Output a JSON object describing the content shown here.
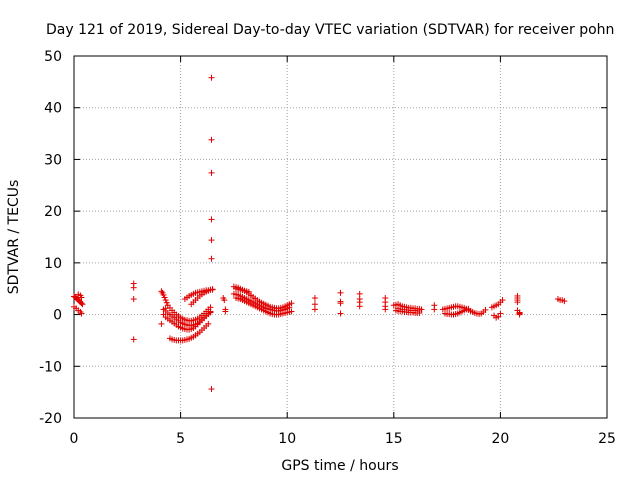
{
  "chart_data": {
    "type": "scatter",
    "title": "Day 121 of 2019, Sidereal Day-to-day VTEC variation (SDTVAR) for receiver pohn",
    "xlabel": "GPS time / hours",
    "ylabel": "SDTVAR / TECUs",
    "xlim": [
      0,
      25
    ],
    "ylim": [
      -20,
      50
    ],
    "xticks": [
      "0",
      "5",
      "10",
      "15",
      "20",
      "25"
    ],
    "yticks": [
      "-20",
      "-10",
      "0",
      "10",
      "20",
      "30",
      "40",
      "50"
    ],
    "grid": true,
    "marker": "+",
    "color": "#e00000",
    "series": [
      {
        "x": [
          0.0,
          0.05,
          0.1,
          0.15,
          0.2,
          0.25,
          0.3,
          0.35,
          0.4,
          0.0,
          0.1,
          0.2,
          0.3,
          0.35,
          0.2,
          0.3,
          0.35,
          2.8,
          2.8,
          2.8,
          2.8,
          4.1,
          4.15,
          4.2,
          4.25,
          4.3,
          4.35,
          4.4,
          4.5,
          4.6,
          4.7,
          4.8,
          4.9,
          5.0,
          5.1,
          5.2,
          5.3,
          5.4,
          5.5,
          5.6,
          5.7,
          5.8,
          5.9,
          6.0,
          6.1,
          6.2,
          6.3,
          6.4,
          4.2,
          4.3,
          4.4,
          4.5,
          4.6,
          4.7,
          4.8,
          4.9,
          5.0,
          5.1,
          5.2,
          5.3,
          5.4,
          5.5,
          5.6,
          5.7,
          5.8,
          5.9,
          6.0,
          6.1,
          6.2,
          6.3,
          6.4,
          4.3,
          4.4,
          4.5,
          4.6,
          4.7,
          4.8,
          4.9,
          5.0,
          5.1,
          5.2,
          5.3,
          5.4,
          5.5,
          5.6,
          5.7,
          5.8,
          5.9,
          6.0,
          6.1,
          6.2,
          6.3,
          6.4,
          4.5,
          4.6,
          4.7,
          4.8,
          4.9,
          5.0,
          5.1,
          5.2,
          5.3,
          5.4,
          5.5,
          5.6,
          5.7,
          5.8,
          5.9,
          6.0,
          6.1,
          6.2,
          6.3,
          4.1,
          4.2,
          4.3,
          5.5,
          5.6,
          5.7,
          5.8,
          5.9,
          6.0,
          6.1,
          6.2,
          6.3,
          6.4,
          6.5,
          5.2,
          5.3,
          5.4,
          5.5,
          5.6,
          5.7,
          5.8,
          5.9,
          6.0,
          6.1,
          6.2,
          6.3,
          6.4,
          6.5,
          6.45,
          6.45,
          6.45,
          6.45,
          6.45,
          6.45,
          6.45,
          7.0,
          7.05,
          7.1,
          7.1,
          7.5,
          7.6,
          7.7,
          7.8,
          7.9,
          8.0,
          8.1,
          8.2,
          8.3,
          8.4,
          8.5,
          8.6,
          8.7,
          8.8,
          8.9,
          9.0,
          9.1,
          9.2,
          9.3,
          9.4,
          9.5,
          9.6,
          9.7,
          9.8,
          9.9,
          10.0,
          10.1,
          10.2,
          7.5,
          7.6,
          7.7,
          7.8,
          7.9,
          8.0,
          8.1,
          8.2,
          8.3,
          8.4,
          8.5,
          8.6,
          8.7,
          8.8,
          8.9,
          9.0,
          9.1,
          9.2,
          9.3,
          9.4,
          9.5,
          9.6,
          9.7,
          9.8,
          9.9,
          10.0,
          10.1,
          7.6,
          7.7,
          7.8,
          7.9,
          8.0,
          8.1,
          8.2,
          8.3,
          8.4,
          8.5,
          8.6,
          8.7,
          8.8,
          8.9,
          9.0,
          9.1,
          9.2,
          9.3,
          9.4,
          9.5,
          9.6,
          9.7,
          9.8,
          9.9,
          10.0,
          10.1,
          10.2,
          7.6,
          7.7,
          7.8,
          7.9,
          8.0,
          8.1,
          8.2,
          11.3,
          11.3,
          11.3,
          12.5,
          12.5,
          12.5,
          12.5,
          13.4,
          13.4,
          13.4,
          13.4,
          14.6,
          14.6,
          14.6,
          14.6,
          15.0,
          15.1,
          15.2,
          15.3,
          15.4,
          15.5,
          15.6,
          15.7,
          15.8,
          15.9,
          16.0,
          16.1,
          16.2,
          16.3,
          15.1,
          15.2,
          15.3,
          15.4,
          15.5,
          15.6,
          15.7,
          15.8,
          15.9,
          16.0,
          16.1,
          16.2,
          15.2,
          15.4,
          15.6,
          15.8,
          16.0,
          16.2,
          16.9,
          16.9,
          17.3,
          17.4,
          17.5,
          17.6,
          17.7,
          17.8,
          17.9,
          18.0,
          18.1,
          18.2,
          18.3,
          18.4,
          18.5,
          18.6,
          18.7,
          18.8,
          18.9,
          19.0,
          19.1,
          19.2,
          19.3,
          17.4,
          17.5,
          17.6,
          17.7,
          17.8,
          17.9,
          18.0,
          18.1,
          18.2,
          18.3,
          18.4,
          18.5,
          19.6,
          19.7,
          19.8,
          19.9,
          20.0,
          20.1,
          19.7,
          19.8,
          19.9,
          20.0,
          20.8,
          20.8,
          20.8,
          20.8,
          20.8,
          20.9,
          20.9,
          20.9,
          22.7,
          22.8,
          22.9,
          23.0
        ],
        "y": [
          3.5,
          3.4,
          3.2,
          3.0,
          2.8,
          2.6,
          2.4,
          2.2,
          2.0,
          1.5,
          1.2,
          0.8,
          0.5,
          0.2,
          3.9,
          3.7,
          3.3,
          6.0,
          5.2,
          3.0,
          -4.8,
          4.5,
          4.2,
          3.8,
          3.3,
          2.8,
          2.3,
          1.8,
          1.3,
          0.8,
          0.4,
          0.0,
          -0.3,
          -0.6,
          -0.8,
          -1.0,
          -1.1,
          -1.2,
          -1.2,
          -1.1,
          -1.0,
          -0.8,
          -0.5,
          -0.2,
          0.2,
          0.6,
          1.0,
          1.4,
          1.0,
          0.7,
          0.3,
          0.0,
          -0.3,
          -0.6,
          -0.9,
          -1.2,
          -1.5,
          -1.7,
          -1.9,
          -2.0,
          -2.1,
          -2.1,
          -2.0,
          -1.9,
          -1.7,
          -1.4,
          -1.0,
          -0.6,
          -0.2,
          0.2,
          0.6,
          -0.5,
          -0.8,
          -1.1,
          -1.4,
          -1.7,
          -2.0,
          -2.3,
          -2.5,
          -2.7,
          -2.8,
          -2.9,
          -2.9,
          -2.8,
          -2.6,
          -2.3,
          -1.9,
          -1.5,
          -1.1,
          -0.7,
          -0.3,
          0.1,
          0.4,
          -4.6,
          -4.8,
          -4.9,
          -5.0,
          -5.0,
          -5.0,
          -5.0,
          -4.9,
          -4.8,
          -4.7,
          -4.5,
          -4.3,
          -4.0,
          -3.7,
          -3.4,
          -3.0,
          -2.6,
          -2.2,
          -1.8,
          -1.8,
          0.0,
          1.2,
          2.0,
          2.4,
          2.8,
          3.2,
          3.6,
          3.9,
          4.2,
          4.4,
          4.6,
          4.8,
          4.9,
          3.0,
          3.3,
          3.6,
          3.8,
          4.0,
          4.2,
          4.3,
          4.4,
          4.5,
          4.6,
          4.7,
          4.7,
          4.8,
          4.8,
          45.8,
          33.8,
          27.4,
          18.4,
          14.4,
          10.8,
          -14.4,
          3.2,
          2.8,
          1.0,
          0.6,
          5.4,
          5.3,
          5.2,
          5.0,
          4.8,
          4.6,
          4.3,
          4.0,
          3.7,
          3.4,
          3.1,
          2.8,
          2.5,
          2.3,
          2.1,
          1.9,
          1.7,
          1.5,
          1.4,
          1.3,
          1.2,
          1.2,
          1.3,
          1.4,
          1.6,
          1.8,
          2.0,
          2.2,
          4.0,
          3.9,
          3.8,
          3.6,
          3.4,
          3.2,
          3.0,
          2.8,
          2.6,
          2.4,
          2.2,
          2.0,
          1.8,
          1.6,
          1.4,
          1.2,
          1.1,
          1.0,
          0.9,
          0.8,
          0.7,
          0.7,
          0.8,
          0.9,
          1.0,
          1.2,
          1.4,
          3.2,
          3.1,
          3.0,
          2.8,
          2.6,
          2.4,
          2.2,
          2.0,
          1.8,
          1.6,
          1.4,
          1.2,
          1.0,
          0.8,
          0.6,
          0.4,
          0.2,
          0.1,
          0.0,
          0.0,
          0.0,
          0.1,
          0.2,
          0.3,
          0.4,
          0.5,
          0.6,
          5.0,
          4.9,
          4.8,
          4.7,
          4.6,
          4.5,
          4.4,
          3.2,
          2.0,
          1.0,
          4.2,
          2.5,
          2.2,
          0.2,
          4.0,
          3.0,
          2.4,
          1.6,
          3.2,
          2.4,
          1.6,
          1.0,
          1.8,
          1.9,
          2.0,
          1.8,
          1.6,
          1.5,
          1.4,
          1.3,
          1.3,
          1.2,
          1.2,
          1.1,
          1.1,
          1.0,
          0.8,
          0.7,
          0.6,
          0.6,
          0.5,
          0.5,
          0.4,
          0.4,
          0.4,
          0.3,
          0.3,
          0.3,
          1.2,
          1.0,
          0.9,
          0.8,
          0.8,
          0.7,
          1.8,
          1.0,
          1.0,
          1.1,
          1.2,
          1.3,
          1.4,
          1.5,
          1.6,
          1.6,
          1.5,
          1.4,
          1.3,
          1.1,
          0.9,
          0.7,
          0.5,
          0.3,
          0.2,
          0.1,
          0.2,
          0.5,
          0.9,
          0.2,
          0.1,
          0.1,
          0.0,
          0.0,
          0.1,
          0.2,
          0.4,
          0.6,
          0.8,
          1.0,
          1.1,
          1.4,
          1.6,
          1.8,
          2.0,
          2.4,
          2.8,
          -0.2,
          -0.6,
          -0.4,
          0.2,
          3.6,
          3.2,
          2.8,
          2.4,
          0.8,
          0.4,
          0.2,
          0.0,
          3.0,
          2.8,
          2.8,
          2.6
        ]
      }
    ]
  }
}
